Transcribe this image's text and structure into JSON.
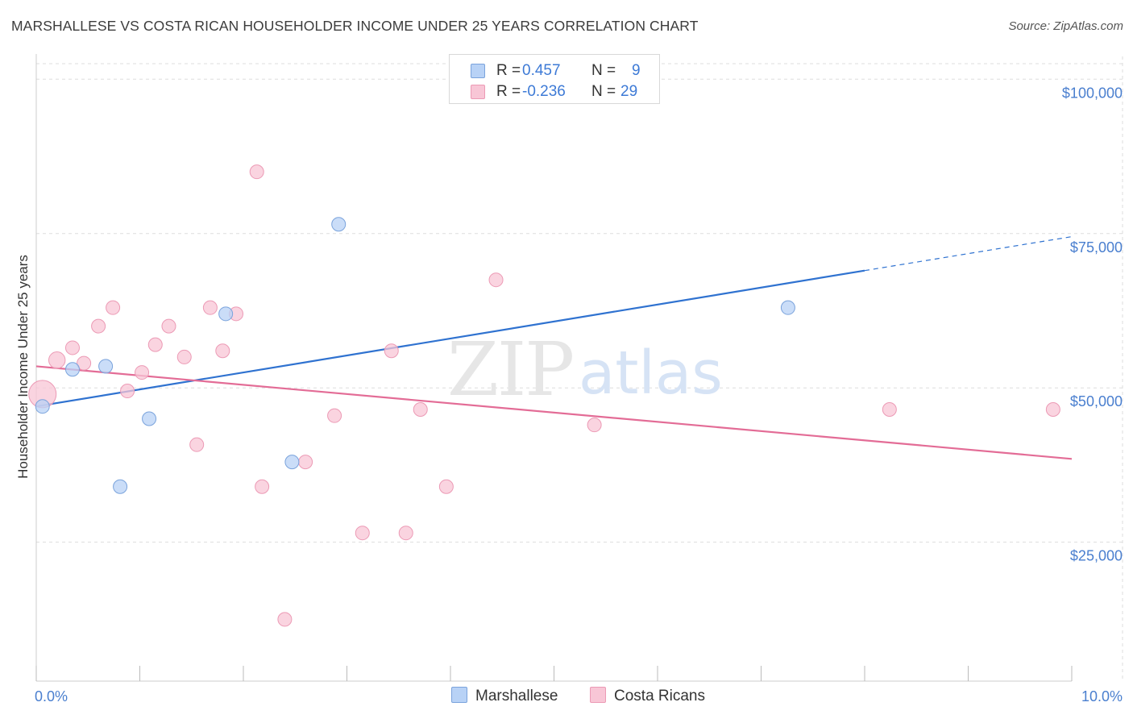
{
  "header": {
    "title": "MARSHALLESE VS COSTA RICAN HOUSEHOLDER INCOME UNDER 25 YEARS CORRELATION CHART",
    "source": "Source: ZipAtlas.com"
  },
  "watermark": {
    "zip": "ZIP",
    "atlas": "atlas"
  },
  "legend": {
    "marshallese": {
      "r_label": "R =",
      "r_value": "0.457",
      "n_label": "N =",
      "n_value": "9"
    },
    "costa_ricans": {
      "r_label": "R =",
      "r_value": "-0.236",
      "n_label": "N =",
      "n_value": "29"
    }
  },
  "bottom_legend": {
    "marshallese": "Marshallese",
    "costa_ricans": "Costa Ricans"
  },
  "colors": {
    "blue_fill": "#b8d2f6",
    "blue_stroke": "#7aa3dc",
    "blue_line": "#2f72d0",
    "pink_fill": "#f8c6d6",
    "pink_stroke": "#ec9ab5",
    "pink_line": "#e36c96",
    "tick_text": "#4a7fcf",
    "grid": "#dddddd"
  },
  "chart_data": {
    "type": "scatter",
    "title": "MARSHALLESE VS COSTA RICAN HOUSEHOLDER INCOME UNDER 25 YEARS CORRELATION CHART",
    "xlabel": "",
    "ylabel": "Householder Income Under 25 years",
    "xlim": [
      0,
      10
    ],
    "ylim": [
      2500,
      105000
    ],
    "x_tick_labels": [
      {
        "value": 0,
        "label": "0.0%"
      },
      {
        "value": 10,
        "label": "10.0%"
      }
    ],
    "y_ticks": [
      {
        "value": 100000,
        "label": "$100,000"
      },
      {
        "value": 75000,
        "label": "$75,000"
      },
      {
        "value": 50000,
        "label": "$50,000"
      },
      {
        "value": 25000,
        "label": "$25,000"
      }
    ],
    "series": [
      {
        "name": "Marshallese",
        "color": "#7aa3dc",
        "points": [
          {
            "x": 0.06,
            "y": 47000,
            "size": 1.0
          },
          {
            "x": 0.35,
            "y": 53000,
            "size": 1.0
          },
          {
            "x": 0.67,
            "y": 53500,
            "size": 1.0
          },
          {
            "x": 0.81,
            "y": 34000,
            "size": 1.0
          },
          {
            "x": 1.09,
            "y": 45000,
            "size": 1.0
          },
          {
            "x": 1.83,
            "y": 62000,
            "size": 1.0
          },
          {
            "x": 2.47,
            "y": 38000,
            "size": 1.0
          },
          {
            "x": 2.92,
            "y": 76500,
            "size": 1.0
          },
          {
            "x": 7.26,
            "y": 63000,
            "size": 1.0
          }
        ],
        "trend": {
          "x0": 0,
          "y0": 47000,
          "x1": 8.0,
          "y1": 69000,
          "dash_to_x": 10.0,
          "dash_to_y": 74500
        }
      },
      {
        "name": "Costa Ricans",
        "color": "#ec9ab5",
        "points": [
          {
            "x": 0.06,
            "y": 49000,
            "size": 2.0
          },
          {
            "x": 0.2,
            "y": 54500,
            "size": 1.2
          },
          {
            "x": 0.35,
            "y": 56500,
            "size": 1.0
          },
          {
            "x": 0.46,
            "y": 54000,
            "size": 1.0
          },
          {
            "x": 0.6,
            "y": 60000,
            "size": 1.0
          },
          {
            "x": 0.74,
            "y": 63000,
            "size": 1.0
          },
          {
            "x": 0.88,
            "y": 49500,
            "size": 1.0
          },
          {
            "x": 1.02,
            "y": 52500,
            "size": 1.0
          },
          {
            "x": 1.15,
            "y": 57000,
            "size": 1.0
          },
          {
            "x": 1.28,
            "y": 60000,
            "size": 1.0
          },
          {
            "x": 1.43,
            "y": 55000,
            "size": 1.0
          },
          {
            "x": 1.55,
            "y": 40800,
            "size": 1.0
          },
          {
            "x": 1.68,
            "y": 63000,
            "size": 1.0
          },
          {
            "x": 1.8,
            "y": 56000,
            "size": 1.0
          },
          {
            "x": 1.93,
            "y": 62000,
            "size": 1.0
          },
          {
            "x": 2.13,
            "y": 85000,
            "size": 1.0
          },
          {
            "x": 2.18,
            "y": 34000,
            "size": 1.0
          },
          {
            "x": 2.4,
            "y": 12500,
            "size": 1.0
          },
          {
            "x": 2.6,
            "y": 38000,
            "size": 1.0
          },
          {
            "x": 2.88,
            "y": 45500,
            "size": 1.0
          },
          {
            "x": 3.15,
            "y": 26500,
            "size": 1.0
          },
          {
            "x": 3.43,
            "y": 56000,
            "size": 1.0
          },
          {
            "x": 3.57,
            "y": 26500,
            "size": 1.0
          },
          {
            "x": 3.71,
            "y": 46500,
            "size": 1.0
          },
          {
            "x": 3.96,
            "y": 34000,
            "size": 1.0
          },
          {
            "x": 4.44,
            "y": 67500,
            "size": 1.0
          },
          {
            "x": 5.39,
            "y": 44000,
            "size": 1.0
          },
          {
            "x": 8.24,
            "y": 46500,
            "size": 1.0
          },
          {
            "x": 9.82,
            "y": 46500,
            "size": 1.0
          }
        ],
        "trend": {
          "x0": 0,
          "y0": 53500,
          "x1": 10.0,
          "y1": 38500
        }
      }
    ]
  }
}
